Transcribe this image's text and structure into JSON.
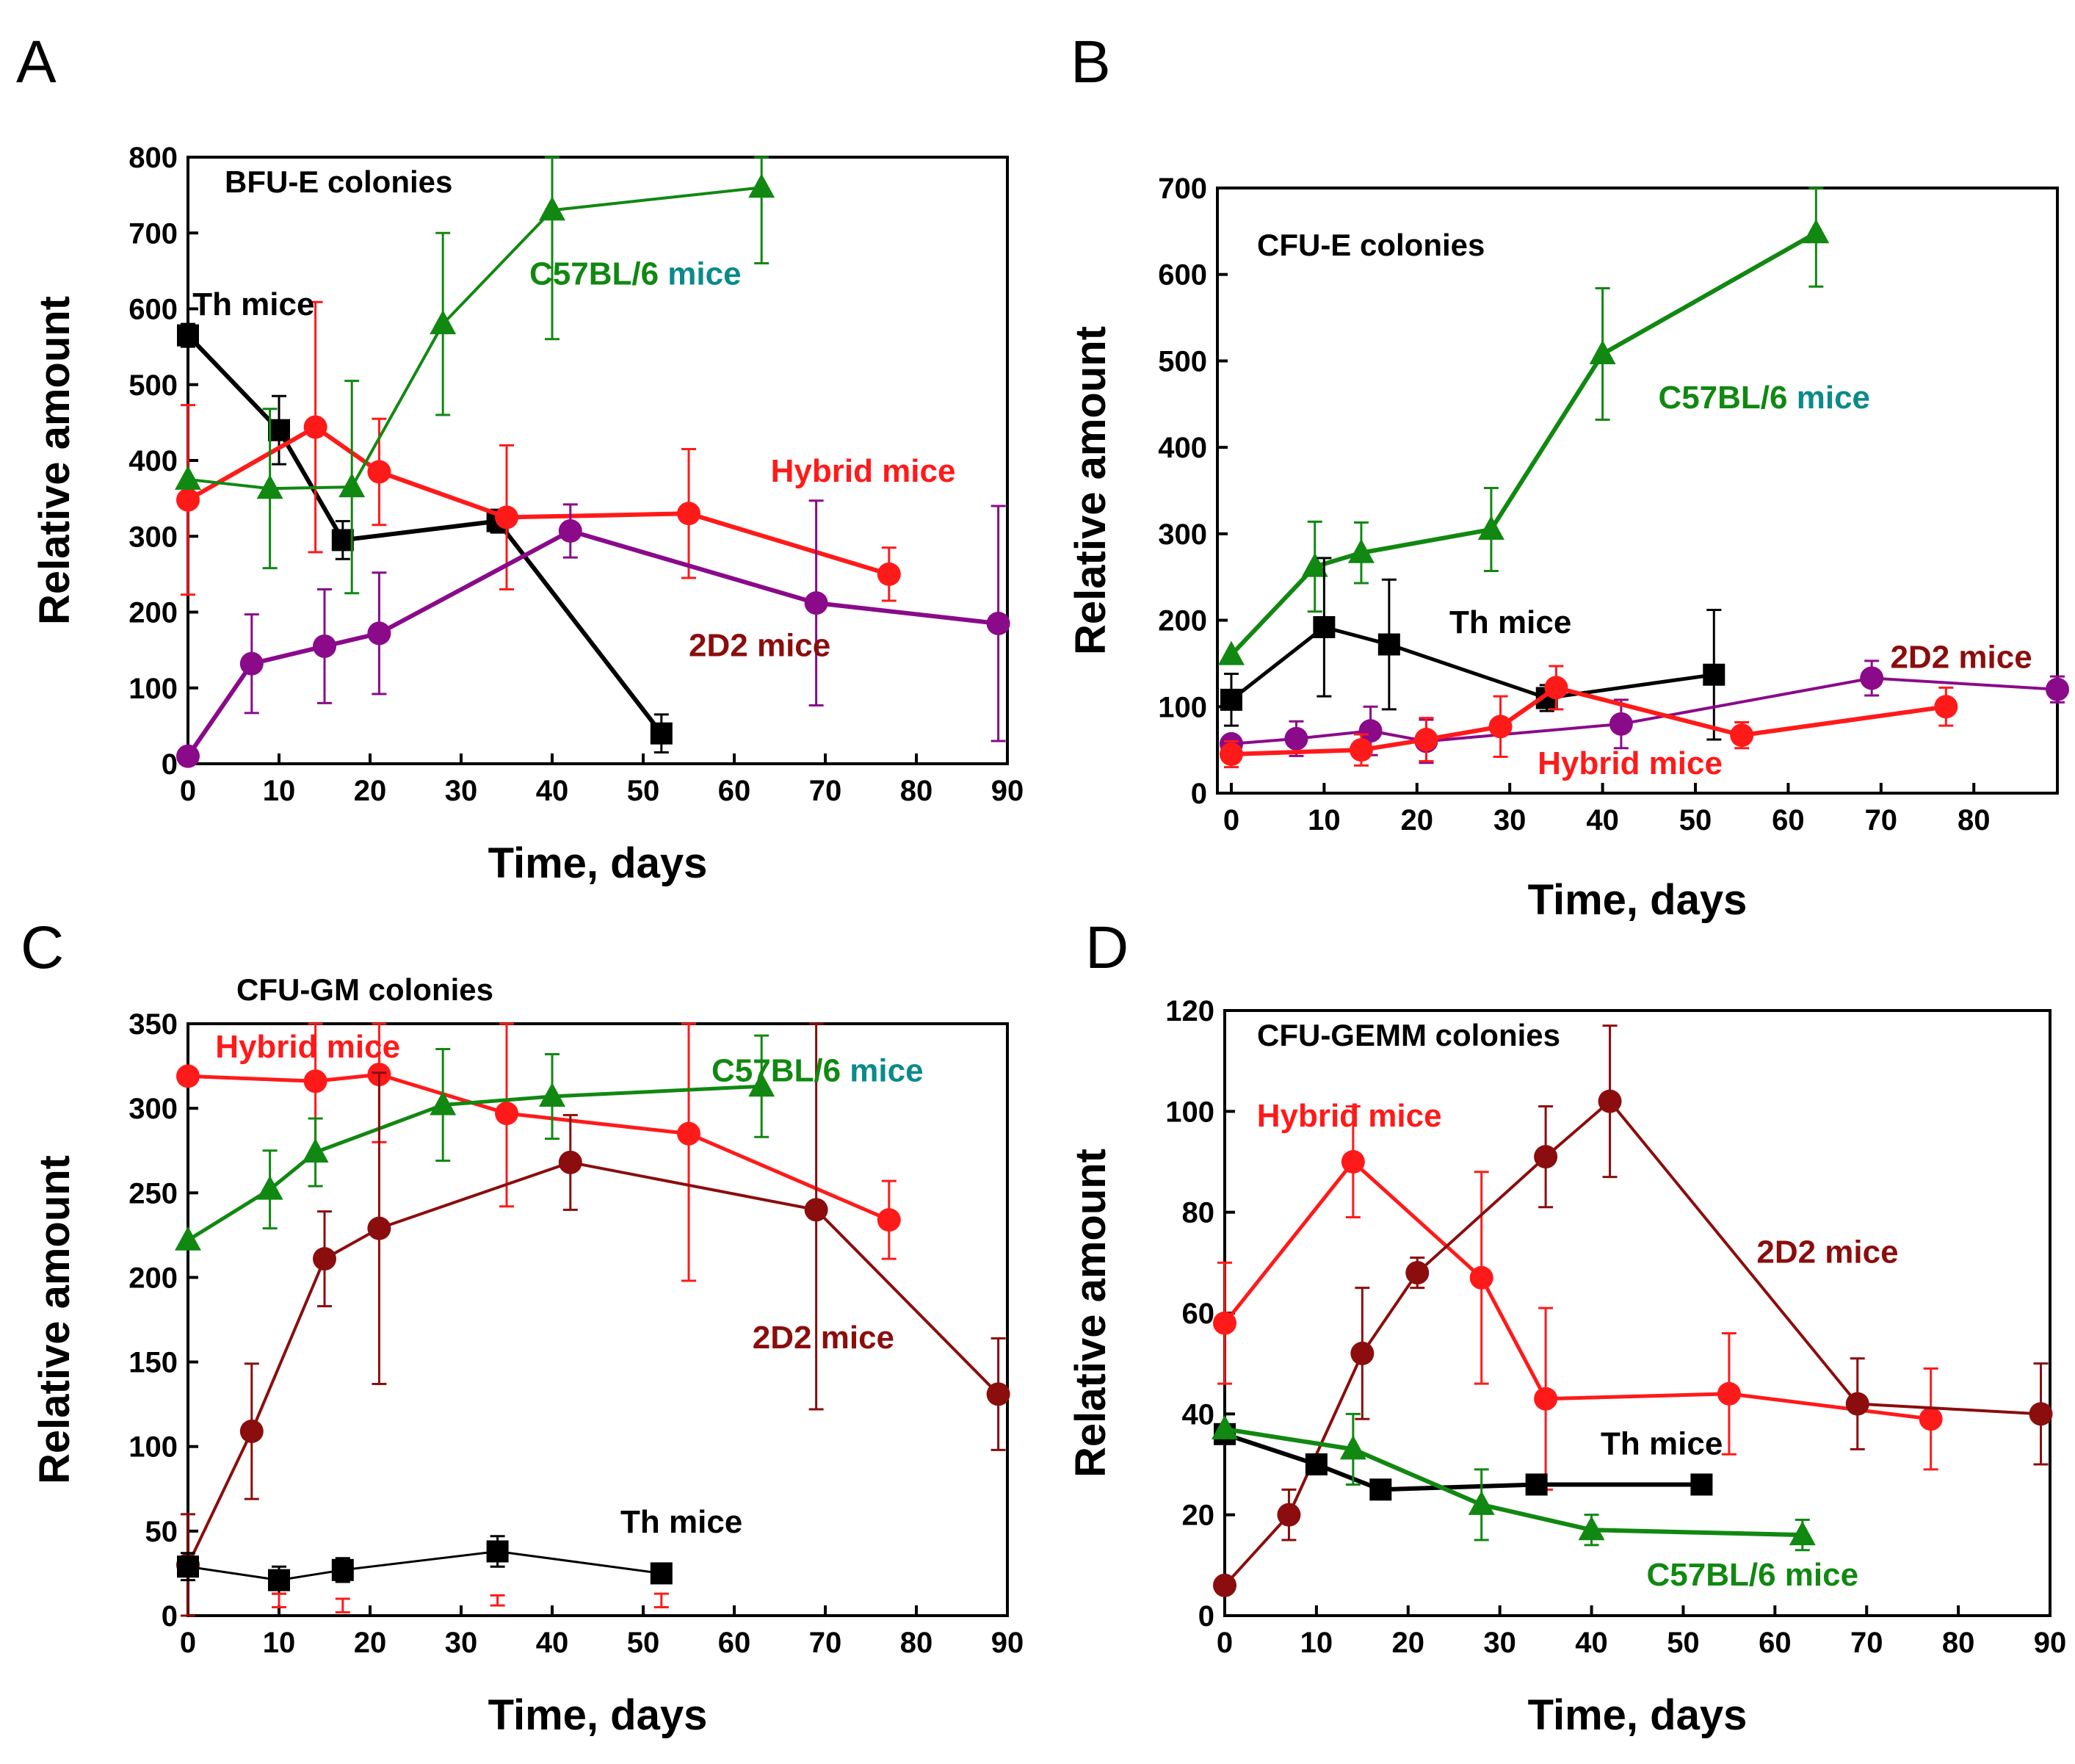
{
  "colors": {
    "black": "#000000",
    "red": "#ff1a1a",
    "green": "#118811",
    "purple": "#8a0a8a",
    "darkred": "#8b0d0d",
    "teal": "#0b8a8a"
  },
  "chart_data": [
    {
      "type": "line",
      "panel_label": "A",
      "title": "BFU-E colonies",
      "xlabel": "Time, days",
      "ylabel": "Relative amount",
      "xlim": [
        0,
        90
      ],
      "ylim": [
        0,
        800
      ],
      "xticks": [
        "0",
        "10",
        "20",
        "30",
        "40",
        "50",
        "60",
        "70",
        "80",
        "90"
      ],
      "yticks": [
        "0",
        "100",
        "200",
        "300",
        "400",
        "500",
        "600",
        "700",
        "800"
      ],
      "series": [
        {
          "name": "Th mice",
          "color_key": "black",
          "marker": "square",
          "width": 6,
          "x": [
            0,
            10,
            17,
            34,
            52
          ],
          "y": [
            565,
            440,
            295,
            320,
            40
          ],
          "err": [
            15,
            45,
            25,
            15,
            25
          ]
        },
        {
          "name": "Hybrid mice",
          "color_key": "red",
          "marker": "circle",
          "width": 6,
          "x": [
            0,
            14,
            21,
            35,
            55,
            77
          ],
          "y": [
            348,
            444,
            385,
            325,
            330,
            250
          ],
          "err": [
            125,
            165,
            70,
            95,
            85,
            35
          ]
        },
        {
          "name": "C57BL/6 mice",
          "color_key": "green",
          "marker": "triangle",
          "width": 4,
          "x": [
            0,
            9,
            18,
            28,
            40,
            63
          ],
          "y": [
            375,
            363,
            365,
            580,
            730,
            760
          ],
          "err": [
            0,
            105,
            140,
            120,
            170,
            100
          ]
        },
        {
          "name": "2D2 mice",
          "color_key": "purple",
          "marker": "circle",
          "width": 6,
          "x": [
            0,
            7,
            15,
            21,
            42,
            69,
            89
          ],
          "y": [
            10,
            132,
            155,
            172,
            307,
            212,
            185
          ],
          "err": [
            0,
            65,
            75,
            80,
            35,
            135,
            155
          ]
        }
      ],
      "annotations": [
        {
          "parts": [
            {
              "text": "Th mice",
              "color_key": "black"
            }
          ],
          "at": [
            0.5,
            592
          ]
        },
        {
          "parts": [
            {
              "text": "C57BL/6 ",
              "color_key": "green"
            },
            {
              "text": "mice",
              "color_key": "teal"
            }
          ],
          "at": [
            37.5,
            632
          ]
        },
        {
          "parts": [
            {
              "text": "Hybrid mice",
              "color_key": "red"
            }
          ],
          "at": [
            64,
            372
          ]
        },
        {
          "parts": [
            {
              "text": "2D2 mice",
              "color_key": "darkred"
            }
          ],
          "at": [
            55,
            142
          ]
        }
      ]
    },
    {
      "type": "line",
      "panel_label": "B",
      "title": "CFU-E colonies",
      "xlabel": "Time, days",
      "ylabel": "Relative amount",
      "xlim": [
        -1.5,
        89
      ],
      "ylim": [
        0,
        700
      ],
      "xticks": [
        "0",
        "10",
        "20",
        "30",
        "40",
        "50",
        "60",
        "70",
        "80"
      ],
      "yticks": [
        "0",
        "100",
        "200",
        "300",
        "400",
        "500",
        "600",
        "700"
      ],
      "series": [
        {
          "name": "C57BL/6 mice",
          "color_key": "green",
          "marker": "triangle",
          "width": 6,
          "x": [
            0,
            9,
            14,
            28,
            40,
            63
          ],
          "y": [
            160,
            262,
            278,
            305,
            508,
            648
          ],
          "err": [
            0,
            52,
            35,
            48,
            76,
            62
          ]
        },
        {
          "name": "Th mice",
          "color_key": "black",
          "marker": "square",
          "width": 5,
          "x": [
            0,
            10,
            17,
            34,
            52
          ],
          "y": [
            108,
            192,
            172,
            110,
            137
          ],
          "err": [
            30,
            80,
            75,
            15,
            75
          ]
        },
        {
          "name": "2D2 mice",
          "color_key": "purple",
          "marker": "circle",
          "width": 4,
          "x": [
            0,
            7,
            15,
            21,
            42,
            69,
            89
          ],
          "y": [
            57,
            63,
            72,
            60,
            80,
            133,
            120
          ],
          "err": [
            0,
            20,
            28,
            25,
            28,
            20,
            15
          ]
        },
        {
          "name": "Hybrid mice",
          "color_key": "red",
          "marker": "circle",
          "width": 6,
          "x": [
            0,
            14,
            21,
            29,
            35,
            55,
            77
          ],
          "y": [
            45,
            50,
            62,
            77,
            122,
            67,
            100
          ],
          "err": [
            15,
            18,
            25,
            35,
            25,
            15,
            22
          ]
        }
      ],
      "annotations": [
        {
          "parts": [
            {
              "text": "C57BL/6 ",
              "color_key": "green"
            },
            {
              "text": "mice",
              "color_key": "teal"
            }
          ],
          "at": [
            46,
            445
          ]
        },
        {
          "parts": [
            {
              "text": "Th mice",
              "color_key": "black"
            }
          ],
          "at": [
            23.5,
            185
          ]
        },
        {
          "parts": [
            {
              "text": "2D2 mice",
              "color_key": "darkred"
            }
          ],
          "at": [
            71,
            145
          ]
        },
        {
          "parts": [
            {
              "text": "Hybrid mice",
              "color_key": "red"
            }
          ],
          "at": [
            33,
            22
          ]
        }
      ]
    },
    {
      "type": "line",
      "panel_label": "C",
      "title": "CFU-GM colonies",
      "xlabel": "Time, days",
      "ylabel": "Relative amount",
      "xlim": [
        0,
        90
      ],
      "ylim": [
        0,
        350
      ],
      "xticks": [
        "0",
        "10",
        "20",
        "30",
        "40",
        "50",
        "60",
        "70",
        "80",
        "90"
      ],
      "yticks": [
        "0",
        "50",
        "100",
        "150",
        "200",
        "250",
        "300",
        "350"
      ],
      "series": [
        {
          "name": "Hybrid mice",
          "color_key": "red",
          "marker": "circle",
          "width": 5,
          "x": [
            0,
            14,
            21,
            35,
            55,
            77
          ],
          "y": [
            319,
            316,
            320,
            297,
            285,
            234
          ],
          "err": [
            0,
            45,
            40,
            55,
            87,
            23
          ]
        },
        {
          "name": "C57BL/6 mice",
          "color_key": "green",
          "marker": "triangle",
          "width": 5,
          "x": [
            0,
            9,
            14,
            28,
            40,
            63
          ],
          "y": [
            222,
            252,
            274,
            302,
            307,
            313
          ],
          "err": [
            0,
            23,
            20,
            33,
            25,
            30
          ]
        },
        {
          "name": "2D2 mice",
          "color_key": "darkred",
          "marker": "circle",
          "width": 4,
          "x": [
            0,
            7,
            15,
            21,
            42,
            69,
            89
          ],
          "y": [
            30,
            109,
            211,
            229,
            268,
            240,
            131
          ],
          "err": [
            30,
            40,
            28,
            92,
            28,
            118,
            33
          ]
        },
        {
          "name": "Th mice",
          "color_key": "black",
          "marker": "square",
          "width": 3,
          "x": [
            0,
            10,
            17,
            34,
            52
          ],
          "y": [
            29,
            21,
            27,
            38,
            25
          ],
          "err": [
            8,
            8,
            7,
            9,
            0
          ]
        },
        {
          "name": "Hybrid mice (low)",
          "color_key": "red",
          "marker": "none",
          "width": 0,
          "x": [
            10,
            17,
            34,
            52
          ],
          "y": [
            9,
            6,
            9,
            9
          ],
          "err": [
            4,
            4,
            3,
            4
          ]
        }
      ],
      "annotations": [
        {
          "parts": [
            {
              "text": "Hybrid mice",
              "color_key": "red"
            }
          ],
          "at": [
            3,
            330
          ]
        },
        {
          "parts": [
            {
              "text": "C57BL/6 ",
              "color_key": "green"
            },
            {
              "text": "mice",
              "color_key": "teal"
            }
          ],
          "at": [
            57.5,
            316
          ]
        },
        {
          "parts": [
            {
              "text": "2D2 mice",
              "color_key": "darkred"
            }
          ],
          "at": [
            62,
            158
          ]
        },
        {
          "parts": [
            {
              "text": "Th mice",
              "color_key": "black"
            }
          ],
          "at": [
            47.5,
            49
          ]
        }
      ]
    },
    {
      "type": "line",
      "panel_label": "D",
      "title": "CFU-GEMM colonies",
      "xlabel": "Time, days",
      "ylabel": "Relative amount",
      "xlim": [
        0,
        90
      ],
      "ylim": [
        0,
        120
      ],
      "xticks": [
        "0",
        "10",
        "20",
        "30",
        "40",
        "50",
        "60",
        "70",
        "80",
        "90"
      ],
      "yticks": [
        "0",
        "20",
        "40",
        "60",
        "80",
        "100",
        "120"
      ],
      "series": [
        {
          "name": "Hybrid mice",
          "color_key": "red",
          "marker": "circle",
          "width": 5,
          "x": [
            0,
            14,
            28,
            35,
            55,
            77
          ],
          "y": [
            58,
            90,
            67,
            43,
            44,
            39
          ],
          "err": [
            12,
            11,
            21,
            18,
            12,
            10
          ]
        },
        {
          "name": "2D2 mice",
          "color_key": "darkred",
          "marker": "circle",
          "width": 4,
          "x": [
            0,
            7,
            15,
            21,
            35,
            42,
            69,
            89
          ],
          "y": [
            6,
            20,
            52,
            68,
            91,
            102,
            42,
            40
          ],
          "err": [
            0,
            5,
            13,
            3,
            10,
            15,
            9,
            10
          ]
        },
        {
          "name": "Th mice",
          "color_key": "black",
          "marker": "square",
          "width": 6,
          "x": [
            0,
            10,
            17,
            34,
            52
          ],
          "y": [
            36,
            30,
            25,
            26,
            26
          ],
          "err": [
            0,
            0,
            0,
            0,
            0
          ]
        },
        {
          "name": "C57BL/6 mice",
          "color_key": "green",
          "marker": "triangle",
          "width": 6,
          "x": [
            0,
            14,
            28,
            40,
            63
          ],
          "y": [
            37,
            33,
            22,
            17,
            16
          ],
          "err": [
            0,
            7,
            7,
            3,
            3
          ]
        }
      ],
      "annotations": [
        {
          "parts": [
            {
              "text": "Hybrid mice",
              "color_key": "red"
            }
          ],
          "at": [
            3.5,
            97
          ]
        },
        {
          "parts": [
            {
              "text": "2D2 mice",
              "color_key": "darkred"
            }
          ],
          "at": [
            58,
            70
          ]
        },
        {
          "parts": [
            {
              "text": "Th mice",
              "color_key": "black"
            }
          ],
          "at": [
            41,
            32
          ]
        },
        {
          "parts": [
            {
              "text": "C57BL/6 mice",
              "color_key": "green"
            }
          ],
          "at": [
            46,
            6
          ]
        }
      ]
    }
  ]
}
